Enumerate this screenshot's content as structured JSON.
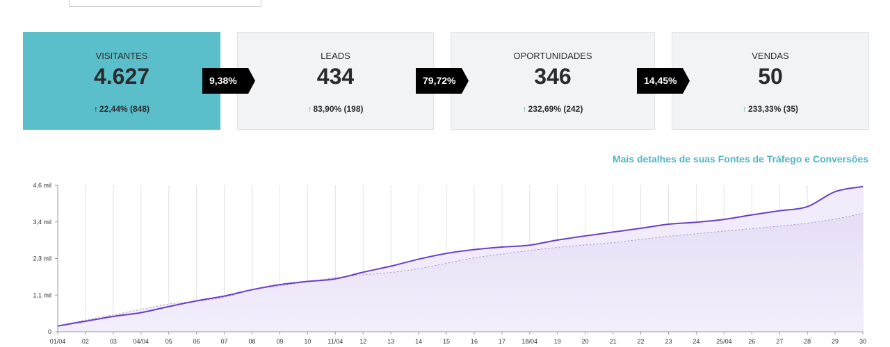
{
  "kpis": [
    {
      "label": "VISITANTES",
      "value": "4.627",
      "delta": "22,44% (848)"
    },
    {
      "label": "LEADS",
      "value": "434",
      "delta": "83,90% (198)"
    },
    {
      "label": "OPORTUNIDADES",
      "value": "346",
      "delta": "232,69% (242)"
    },
    {
      "label": "VENDAS",
      "value": "50",
      "delta": "233,33% (35)"
    }
  ],
  "conversions": [
    "9,38%",
    "79,72%",
    "14,45%"
  ],
  "details_link": "Mais detalhes de suas Fontes de Tráfego e Conversões",
  "colors": {
    "active_card": "#5bbfcb",
    "up_arrow": "#3cb878",
    "series_line": "#6a3dc8",
    "link": "#4fb6c4"
  },
  "chart_data": {
    "type": "area",
    "x": [
      "01/04",
      "02",
      "03",
      "04/04",
      "05",
      "06",
      "07",
      "08",
      "09",
      "10",
      "11/04",
      "12",
      "13",
      "14",
      "15",
      "16",
      "17",
      "18/04",
      "19",
      "20",
      "21",
      "22",
      "23",
      "24",
      "25/04",
      "26",
      "27",
      "28",
      "29",
      "30"
    ],
    "y_ticks": [
      "0",
      "1,1 mil",
      "2,3 mil",
      "3,4 mil",
      "4,6 mil"
    ],
    "ylim": [
      0,
      4600
    ],
    "series": [
      {
        "values": [
          180,
          330,
          480,
          600,
          790,
          970,
          1120,
          1320,
          1480,
          1580,
          1660,
          1870,
          2060,
          2280,
          2460,
          2580,
          2660,
          2720,
          2880,
          3010,
          3130,
          3250,
          3380,
          3440,
          3530,
          3670,
          3800,
          3930,
          4400,
          4560
        ]
      },
      {
        "values": [
          180,
          370,
          530,
          700,
          870,
          960,
          1080,
          1320,
          1440,
          1570,
          1700,
          1790,
          1860,
          1980,
          2150,
          2320,
          2440,
          2550,
          2650,
          2730,
          2800,
          2900,
          3000,
          3080,
          3160,
          3240,
          3320,
          3410,
          3540,
          3720
        ]
      }
    ],
    "grid": "vertical"
  }
}
